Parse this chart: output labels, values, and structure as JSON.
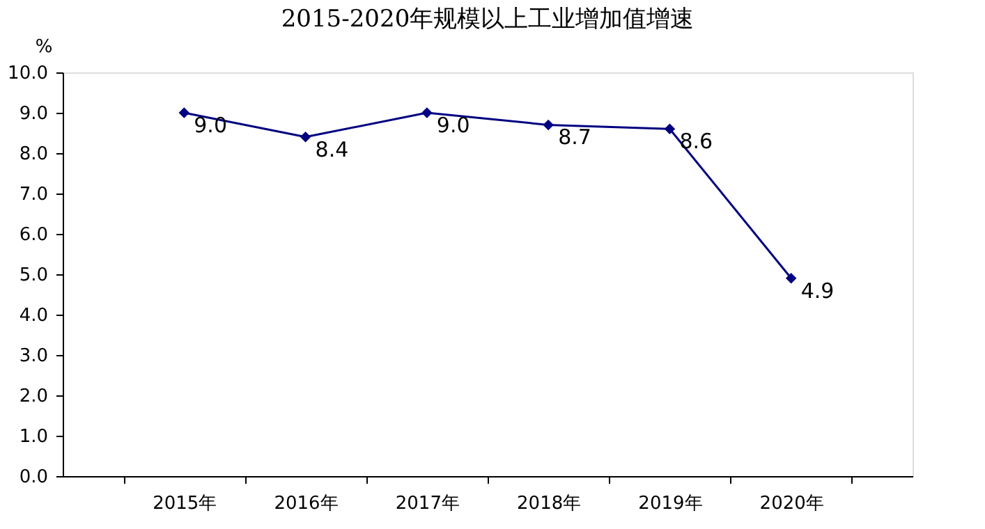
{
  "chart_data": {
    "type": "line",
    "title": "2015-2020年规模以上工业增加值增速",
    "ylabel": "%",
    "categories": [
      "2015年",
      "2016年",
      "2017年",
      "2018年",
      "2019年",
      "2020年"
    ],
    "series": [
      {
        "color": "#000080",
        "values": [
          9.0,
          8.4,
          9.0,
          8.7,
          8.6,
          4.9
        ],
        "value_labels": [
          "9.0",
          "8.4",
          "9.0",
          "8.7",
          "8.6",
          "4.9"
        ]
      }
    ],
    "ylim": [
      0,
      10
    ],
    "yticks": [
      {
        "value": 0,
        "label": "0.0"
      },
      {
        "value": 1,
        "label": "1.0"
      },
      {
        "value": 2,
        "label": "2.0"
      },
      {
        "value": 3,
        "label": "3.0"
      },
      {
        "value": 4,
        "label": "4.0"
      },
      {
        "value": 5,
        "label": "5.0"
      },
      {
        "value": 6,
        "label": "6.0"
      },
      {
        "value": 7,
        "label": "7.0"
      },
      {
        "value": 8,
        "label": "8.0"
      },
      {
        "value": 9,
        "label": "9.0"
      },
      {
        "value": 10,
        "label": "10.0"
      }
    ],
    "grid": false,
    "marker": "diamond",
    "line_style": "solid"
  }
}
